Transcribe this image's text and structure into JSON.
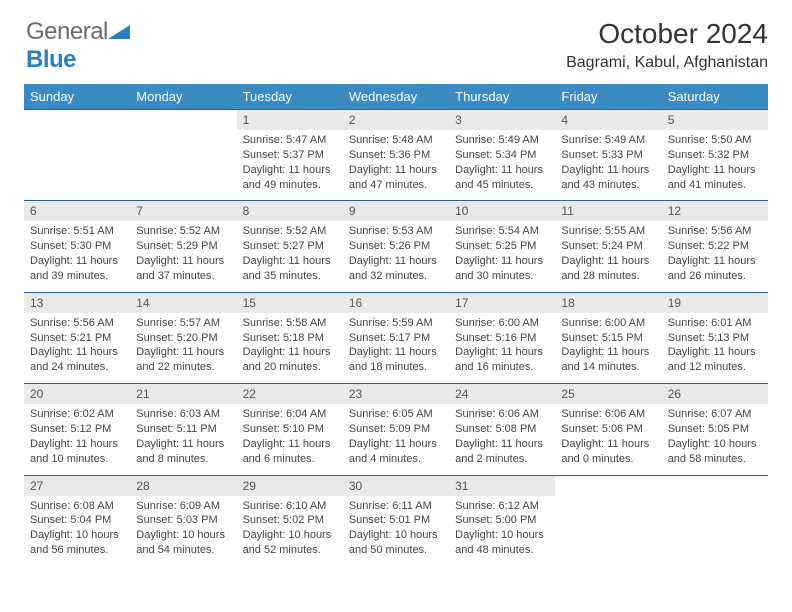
{
  "logo": {
    "part1": "General",
    "part2": "Blue"
  },
  "title": "October 2024",
  "location": "Bagrami, Kabul, Afghanistan",
  "colors": {
    "header_bg": "#3a8ac4",
    "header_fg": "#ffffff",
    "daynum_bg": "#e9e9e9",
    "rule": "#2a5f8f",
    "logo_gray": "#6b6b6b",
    "logo_blue": "#2a7fbf"
  },
  "day_headers": [
    "Sunday",
    "Monday",
    "Tuesday",
    "Wednesday",
    "Thursday",
    "Friday",
    "Saturday"
  ],
  "weeks": [
    [
      null,
      null,
      {
        "n": "1",
        "sunrise": "Sunrise: 5:47 AM",
        "sunset": "Sunset: 5:37 PM",
        "day1": "Daylight: 11 hours",
        "day2": "and 49 minutes."
      },
      {
        "n": "2",
        "sunrise": "Sunrise: 5:48 AM",
        "sunset": "Sunset: 5:36 PM",
        "day1": "Daylight: 11 hours",
        "day2": "and 47 minutes."
      },
      {
        "n": "3",
        "sunrise": "Sunrise: 5:49 AM",
        "sunset": "Sunset: 5:34 PM",
        "day1": "Daylight: 11 hours",
        "day2": "and 45 minutes."
      },
      {
        "n": "4",
        "sunrise": "Sunrise: 5:49 AM",
        "sunset": "Sunset: 5:33 PM",
        "day1": "Daylight: 11 hours",
        "day2": "and 43 minutes."
      },
      {
        "n": "5",
        "sunrise": "Sunrise: 5:50 AM",
        "sunset": "Sunset: 5:32 PM",
        "day1": "Daylight: 11 hours",
        "day2": "and 41 minutes."
      }
    ],
    [
      {
        "n": "6",
        "sunrise": "Sunrise: 5:51 AM",
        "sunset": "Sunset: 5:30 PM",
        "day1": "Daylight: 11 hours",
        "day2": "and 39 minutes."
      },
      {
        "n": "7",
        "sunrise": "Sunrise: 5:52 AM",
        "sunset": "Sunset: 5:29 PM",
        "day1": "Daylight: 11 hours",
        "day2": "and 37 minutes."
      },
      {
        "n": "8",
        "sunrise": "Sunrise: 5:52 AM",
        "sunset": "Sunset: 5:27 PM",
        "day1": "Daylight: 11 hours",
        "day2": "and 35 minutes."
      },
      {
        "n": "9",
        "sunrise": "Sunrise: 5:53 AM",
        "sunset": "Sunset: 5:26 PM",
        "day1": "Daylight: 11 hours",
        "day2": "and 32 minutes."
      },
      {
        "n": "10",
        "sunrise": "Sunrise: 5:54 AM",
        "sunset": "Sunset: 5:25 PM",
        "day1": "Daylight: 11 hours",
        "day2": "and 30 minutes."
      },
      {
        "n": "11",
        "sunrise": "Sunrise: 5:55 AM",
        "sunset": "Sunset: 5:24 PM",
        "day1": "Daylight: 11 hours",
        "day2": "and 28 minutes."
      },
      {
        "n": "12",
        "sunrise": "Sunrise: 5:56 AM",
        "sunset": "Sunset: 5:22 PM",
        "day1": "Daylight: 11 hours",
        "day2": "and 26 minutes."
      }
    ],
    [
      {
        "n": "13",
        "sunrise": "Sunrise: 5:56 AM",
        "sunset": "Sunset: 5:21 PM",
        "day1": "Daylight: 11 hours",
        "day2": "and 24 minutes."
      },
      {
        "n": "14",
        "sunrise": "Sunrise: 5:57 AM",
        "sunset": "Sunset: 5:20 PM",
        "day1": "Daylight: 11 hours",
        "day2": "and 22 minutes."
      },
      {
        "n": "15",
        "sunrise": "Sunrise: 5:58 AM",
        "sunset": "Sunset: 5:18 PM",
        "day1": "Daylight: 11 hours",
        "day2": "and 20 minutes."
      },
      {
        "n": "16",
        "sunrise": "Sunrise: 5:59 AM",
        "sunset": "Sunset: 5:17 PM",
        "day1": "Daylight: 11 hours",
        "day2": "and 18 minutes."
      },
      {
        "n": "17",
        "sunrise": "Sunrise: 6:00 AM",
        "sunset": "Sunset: 5:16 PM",
        "day1": "Daylight: 11 hours",
        "day2": "and 16 minutes."
      },
      {
        "n": "18",
        "sunrise": "Sunrise: 6:00 AM",
        "sunset": "Sunset: 5:15 PM",
        "day1": "Daylight: 11 hours",
        "day2": "and 14 minutes."
      },
      {
        "n": "19",
        "sunrise": "Sunrise: 6:01 AM",
        "sunset": "Sunset: 5:13 PM",
        "day1": "Daylight: 11 hours",
        "day2": "and 12 minutes."
      }
    ],
    [
      {
        "n": "20",
        "sunrise": "Sunrise: 6:02 AM",
        "sunset": "Sunset: 5:12 PM",
        "day1": "Daylight: 11 hours",
        "day2": "and 10 minutes."
      },
      {
        "n": "21",
        "sunrise": "Sunrise: 6:03 AM",
        "sunset": "Sunset: 5:11 PM",
        "day1": "Daylight: 11 hours",
        "day2": "and 8 minutes."
      },
      {
        "n": "22",
        "sunrise": "Sunrise: 6:04 AM",
        "sunset": "Sunset: 5:10 PM",
        "day1": "Daylight: 11 hours",
        "day2": "and 6 minutes."
      },
      {
        "n": "23",
        "sunrise": "Sunrise: 6:05 AM",
        "sunset": "Sunset: 5:09 PM",
        "day1": "Daylight: 11 hours",
        "day2": "and 4 minutes."
      },
      {
        "n": "24",
        "sunrise": "Sunrise: 6:06 AM",
        "sunset": "Sunset: 5:08 PM",
        "day1": "Daylight: 11 hours",
        "day2": "and 2 minutes."
      },
      {
        "n": "25",
        "sunrise": "Sunrise: 6:06 AM",
        "sunset": "Sunset: 5:06 PM",
        "day1": "Daylight: 11 hours",
        "day2": "and 0 minutes."
      },
      {
        "n": "26",
        "sunrise": "Sunrise: 6:07 AM",
        "sunset": "Sunset: 5:05 PM",
        "day1": "Daylight: 10 hours",
        "day2": "and 58 minutes."
      }
    ],
    [
      {
        "n": "27",
        "sunrise": "Sunrise: 6:08 AM",
        "sunset": "Sunset: 5:04 PM",
        "day1": "Daylight: 10 hours",
        "day2": "and 56 minutes."
      },
      {
        "n": "28",
        "sunrise": "Sunrise: 6:09 AM",
        "sunset": "Sunset: 5:03 PM",
        "day1": "Daylight: 10 hours",
        "day2": "and 54 minutes."
      },
      {
        "n": "29",
        "sunrise": "Sunrise: 6:10 AM",
        "sunset": "Sunset: 5:02 PM",
        "day1": "Daylight: 10 hours",
        "day2": "and 52 minutes."
      },
      {
        "n": "30",
        "sunrise": "Sunrise: 6:11 AM",
        "sunset": "Sunset: 5:01 PM",
        "day1": "Daylight: 10 hours",
        "day2": "and 50 minutes."
      },
      {
        "n": "31",
        "sunrise": "Sunrise: 6:12 AM",
        "sunset": "Sunset: 5:00 PM",
        "day1": "Daylight: 10 hours",
        "day2": "and 48 minutes."
      },
      null,
      null
    ]
  ]
}
